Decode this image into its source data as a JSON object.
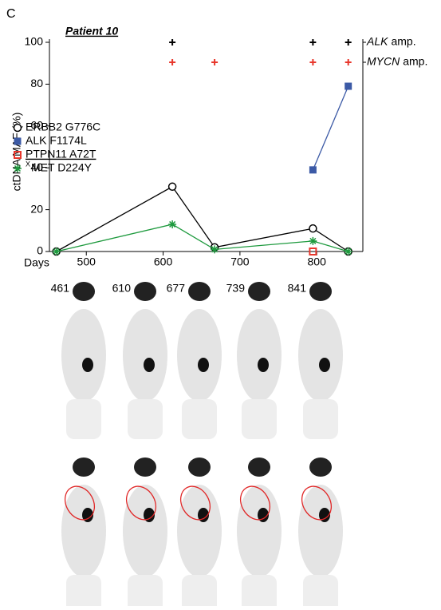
{
  "panel_label": "C",
  "chart_data": {
    "type": "line",
    "title": "Patient 10",
    "ylabel": "ctDNA MAF (%)",
    "xlabel": "Days",
    "xlim": [
      452,
      860
    ],
    "xticks": [
      500,
      600,
      700,
      800
    ],
    "ylim": [
      0,
      100
    ],
    "yticks": [
      0,
      20,
      40,
      60,
      80,
      100
    ],
    "series": [
      {
        "name": "ERBB2 G776C",
        "marker": "open-circle",
        "color": "#000000",
        "x": [
          461,
          612,
          667,
          795,
          841
        ],
        "values": [
          0,
          31,
          2,
          11,
          0
        ]
      },
      {
        "name": "ALK F1174L",
        "marker": "square",
        "color": "#3c5aa6",
        "x": [
          795,
          841
        ],
        "values": [
          39,
          79
        ]
      },
      {
        "name": "PTPN11 A72T",
        "marker": "open-square",
        "color": "#e8372c",
        "x": [
          795
        ],
        "values": [
          0
        ]
      },
      {
        "name": "MET D224Y",
        "name_prefix": "X",
        "marker": "asterisk",
        "color": "#1e9a3e",
        "x": [
          461,
          612,
          667,
          795,
          841
        ],
        "values": [
          0,
          13,
          1,
          5,
          0
        ]
      }
    ],
    "amplifications": [
      {
        "gene": "ALK",
        "suffix": "amp.",
        "color": "#000000",
        "x": [
          612,
          795,
          841
        ]
      },
      {
        "gene": "MYCN",
        "suffix": "amp.",
        "color": "#e8372c",
        "x": [
          612,
          667,
          795,
          841
        ]
      }
    ]
  },
  "scan_days": [
    "461",
    "610",
    "677",
    "739",
    "841"
  ]
}
